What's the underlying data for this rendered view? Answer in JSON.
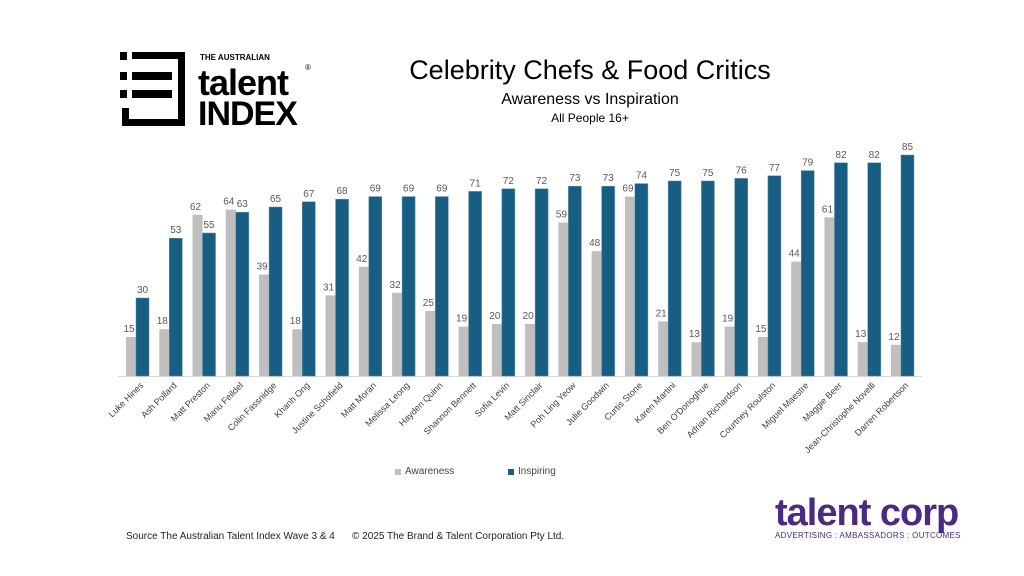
{
  "logo_left": {
    "top": "THE AUSTRALIAN",
    "mid": "talent",
    "bottom": "INDEX",
    "mark": "®"
  },
  "logo_right": {
    "name": "talent corp",
    "tagline": "ADVERTISING : AMBASSADORS : OUTCOMES"
  },
  "footer": {
    "source": "Source The Australian Talent Index Wave 3 & 4",
    "copyright": "© 2025 The Brand & Talent Corporation Pty Ltd."
  },
  "chart_data": {
    "type": "bar",
    "title": "Celebrity Chefs & Food Critics",
    "subtitle": "Awareness vs Inspiration",
    "note": "All People 16+",
    "xlabel": "",
    "ylabel": "",
    "ylim": [
      0,
      90
    ],
    "grid": false,
    "legend_position": "bottom",
    "categories": [
      "Luke Hines",
      "Ash Pollard",
      "Matt Preston",
      "Manu Feildel",
      "Colin Fassnidge",
      "Khanh Ong",
      "Justine Schofield",
      "Matt Moran",
      "Melissa Leong",
      "Hayden Quinn",
      "Shannon Bennett",
      "Sofia Levin",
      "Matt Sinclair",
      "Poh Ling Yeow",
      "Julie Goodwin",
      "Curtis Stone",
      "Karen Martini",
      "Ben O'Donoghue",
      "Adrian Richardson",
      "Courtney Roulston",
      "Miguel Maestre",
      "Maggie Beer",
      "Jean-Christophe Novelli",
      "Darren Robertson"
    ],
    "series": [
      {
        "name": "Awareness",
        "color": "#bfbfbf",
        "values": [
          15,
          18,
          62,
          64,
          39,
          18,
          31,
          42,
          32,
          25,
          19,
          20,
          20,
          59,
          48,
          69,
          21,
          13,
          19,
          15,
          44,
          61,
          13,
          12
        ]
      },
      {
        "name": "Inspiring",
        "color": "#175e82",
        "values": [
          30,
          53,
          55,
          63,
          65,
          67,
          68,
          69,
          69,
          69,
          71,
          72,
          72,
          73,
          73,
          74,
          75,
          75,
          76,
          77,
          79,
          82,
          82,
          85
        ]
      }
    ]
  }
}
